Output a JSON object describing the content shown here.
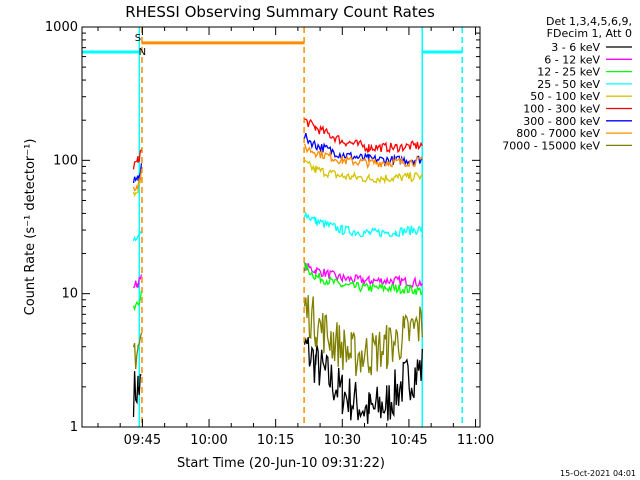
{
  "chart_data": {
    "type": "line",
    "title": "RHESSI Observing Summary Count Rates",
    "xlabel": "Start Time (20-Jun-10 09:31:22)",
    "ylabel": "Count Rate (s⁻¹ detector⁻¹)",
    "yscale": "log",
    "ylim": [
      1,
      1000
    ],
    "xlim_minutes": [
      31.4,
      121.0
    ],
    "y_ticks": [
      {
        "value": 1,
        "label": "1"
      },
      {
        "value": 10,
        "label": "10"
      },
      {
        "value": 100,
        "label": "100"
      },
      {
        "value": 1000,
        "label": "1000"
      }
    ],
    "x_ticks": [
      {
        "minutes": 45,
        "label": "09:45"
      },
      {
        "minutes": 60,
        "label": "10:00"
      },
      {
        "minutes": 75,
        "label": "10:15"
      },
      {
        "minutes": 90,
        "label": "10:30"
      },
      {
        "minutes": 105,
        "label": "10:45"
      },
      {
        "minutes": 120,
        "label": "11:00"
      }
    ],
    "legend": {
      "position": "top-right",
      "header": [
        "Det 1,3,4,5,6,9,",
        "FDecim 1, Att 0"
      ],
      "entries": [
        {
          "label": "3 - 6 keV",
          "color": "#000000"
        },
        {
          "label": "6 - 12 keV",
          "color": "#ff00ff"
        },
        {
          "label": "12 - 25 keV",
          "color": "#00ff00"
        },
        {
          "label": "25 - 50 keV",
          "color": "#00ffff"
        },
        {
          "label": "50 - 100 keV",
          "color": "#d4c400"
        },
        {
          "label": "100 - 300 keV",
          "color": "#ff0000"
        },
        {
          "label": "300 - 800 keV",
          "color": "#0000ff"
        },
        {
          "label": "800 - 7000 keV",
          "color": "#ff8c00"
        },
        {
          "label": "7000 - 15000 keV",
          "color": "#808000"
        }
      ]
    },
    "observing_intervals": [
      [
        43.0,
        44.8
      ],
      [
        81.5,
        108.0
      ]
    ],
    "series": [
      {
        "name": "3 - 6 keV",
        "color": "#000000",
        "segments": [
          [
            [
              43.0,
              1.8
            ],
            [
              44.0,
              2.0
            ],
            [
              44.8,
              2.0
            ]
          ],
          [
            [
              81.5,
              4.0
            ],
            [
              84.0,
              3.0
            ],
            [
              90.0,
              1.8
            ],
            [
              96.0,
              1.3
            ],
            [
              100.0,
              1.5
            ],
            [
              104.0,
              2.2
            ],
            [
              108.0,
              2.8
            ]
          ]
        ]
      },
      {
        "name": "6 - 12 keV",
        "color": "#ff00ff",
        "segments": [
          [
            [
              43.0,
              11.5
            ],
            [
              44.0,
              12.0
            ],
            [
              44.8,
              13.0
            ]
          ],
          [
            [
              81.5,
              16.0
            ],
            [
              84.0,
              15.0
            ],
            [
              90.0,
              13.0
            ],
            [
              96.0,
              12.5
            ],
            [
              102.0,
              12.5
            ],
            [
              108.0,
              12.0
            ]
          ]
        ]
      },
      {
        "name": "12 - 25 keV",
        "color": "#00ff00",
        "segments": [
          [
            [
              43.0,
              7.5
            ],
            [
              44.0,
              8.5
            ],
            [
              44.8,
              10.0
            ]
          ],
          [
            [
              81.5,
              16.0
            ],
            [
              84.0,
              13.5
            ],
            [
              90.0,
              11.5
            ],
            [
              96.0,
              11.0
            ],
            [
              102.0,
              11.0
            ],
            [
              108.0,
              10.5
            ]
          ]
        ]
      },
      {
        "name": "25 - 50 keV",
        "color": "#00ffff",
        "segments": [
          [
            [
              43.0,
              24.0
            ],
            [
              44.0,
              26.0
            ],
            [
              44.8,
              30.0
            ]
          ],
          [
            [
              81.5,
              40.0
            ],
            [
              84.0,
              35.0
            ],
            [
              90.0,
              30.0
            ],
            [
              96.0,
              28.5
            ],
            [
              102.0,
              29.0
            ],
            [
              108.0,
              30.5
            ]
          ]
        ]
      },
      {
        "name": "50 - 100 keV",
        "color": "#d4c400",
        "segments": [
          [
            [
              43.0,
              55.0
            ],
            [
              44.0,
              60.0
            ],
            [
              44.8,
              70.0
            ]
          ],
          [
            [
              81.5,
              95.0
            ],
            [
              84.0,
              85.0
            ],
            [
              90.0,
              76.0
            ],
            [
              96.0,
              73.0
            ],
            [
              102.0,
              74.0
            ],
            [
              108.0,
              76.0
            ]
          ]
        ]
      },
      {
        "name": "100 - 300 keV",
        "color": "#ff0000",
        "segments": [
          [
            [
              43.0,
              90.0
            ],
            [
              44.0,
              100.0
            ],
            [
              44.8,
              120.0
            ]
          ],
          [
            [
              81.5,
              200.0
            ],
            [
              84.0,
              175.0
            ],
            [
              90.0,
              140.0
            ],
            [
              96.0,
              125.0
            ],
            [
              102.0,
              125.0
            ],
            [
              108.0,
              130.0
            ]
          ]
        ]
      },
      {
        "name": "300 - 800 keV",
        "color": "#0000ff",
        "segments": [
          [
            [
              43.0,
              68.0
            ],
            [
              44.0,
              75.0
            ],
            [
              44.8,
              90.0
            ]
          ],
          [
            [
              81.5,
              150.0
            ],
            [
              84.0,
              130.0
            ],
            [
              90.0,
              110.0
            ],
            [
              96.0,
              102.0
            ],
            [
              102.0,
              100.0
            ],
            [
              108.0,
              102.0
            ]
          ]
        ]
      },
      {
        "name": "800 - 7000 keV",
        "color": "#ff8c00",
        "segments": [
          [
            [
              43.0,
              62.0
            ],
            [
              44.0,
              66.0
            ],
            [
              44.8,
              80.0
            ]
          ],
          [
            [
              81.5,
              125.0
            ],
            [
              84.0,
              115.0
            ],
            [
              90.0,
              100.0
            ],
            [
              96.0,
              96.0
            ],
            [
              102.0,
              97.0
            ],
            [
              108.0,
              98.0
            ]
          ]
        ]
      },
      {
        "name": "7000 - 15000 keV",
        "color": "#808000",
        "segments": [
          [
            [
              43.0,
              3.8
            ],
            [
              44.0,
              4.0
            ],
            [
              44.8,
              4.5
            ]
          ],
          [
            [
              81.5,
              8.0
            ],
            [
              84.0,
              6.0
            ],
            [
              88.0,
              4.5
            ],
            [
              92.0,
              3.5
            ],
            [
              96.0,
              3.5
            ],
            [
              100.0,
              4.0
            ],
            [
              104.0,
              4.8
            ],
            [
              108.0,
              6.0
            ]
          ]
        ]
      }
    ],
    "flag_lines": [
      {
        "name": "SAA",
        "label": "S",
        "color": "#ff8c00",
        "level": 760,
        "x_start": 44.8,
        "x_end": 81.5,
        "label_at": 44.0
      },
      {
        "name": "Night",
        "label": "N",
        "color": "#00ffff",
        "level": 650,
        "segments": [
          [
            31.4,
            44.3
          ],
          [
            108.0,
            117.0
          ]
        ],
        "label_at": 45.0
      }
    ],
    "vertical_markers": [
      {
        "minutes": 44.3,
        "color": "#00ffff",
        "style": "solid"
      },
      {
        "minutes": 44.9,
        "color": "#ff8c00",
        "style": "dashed"
      },
      {
        "minutes": 81.4,
        "color": "#ff8c00",
        "style": "dashed"
      },
      {
        "minutes": 108.0,
        "color": "#00ffff",
        "style": "solid"
      },
      {
        "minutes": 117.0,
        "color": "#00ffff",
        "style": "dashed"
      }
    ],
    "timestamp": "15-Oct-2021 04:01"
  }
}
